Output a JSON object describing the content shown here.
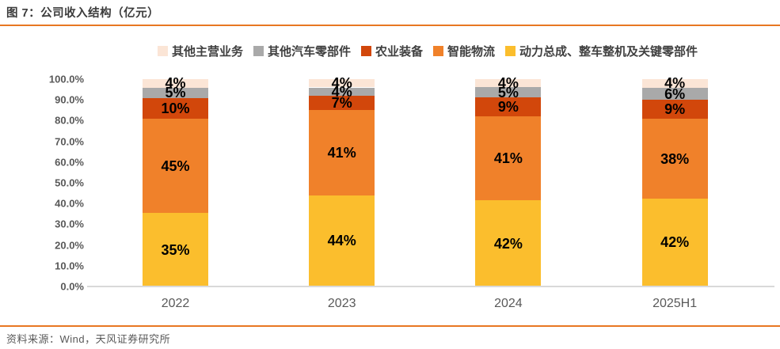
{
  "figure": {
    "title": "图 7：公司收入结构（亿元）",
    "source": "资料来源：Wind，天风证券研究所"
  },
  "colors": {
    "accent_rule": "#e87722",
    "axis_line": "#d9d9d9",
    "title_text": "#3b3b3b",
    "tick_text": "#595959",
    "segment_label_text": "#000000"
  },
  "legend": {
    "items": [
      {
        "label": "其他主营业务",
        "color": "#fbe5d6"
      },
      {
        "label": "其他汽车零部件",
        "color": "#a9a9a9"
      },
      {
        "label": "农业装备",
        "color": "#d2470b"
      },
      {
        "label": "智能物流",
        "color": "#f0812a"
      },
      {
        "label": "动力总成、整车整机及关键零部件",
        "color": "#fbbe2d"
      }
    ]
  },
  "chart_data": {
    "type": "bar",
    "stacked": true,
    "title": "图 7：公司收入结构（亿元）",
    "categories": [
      "2022",
      "2023",
      "2024",
      "2025H1"
    ],
    "series": [
      {
        "name": "动力总成、整车整机及关键零部件",
        "color": "#fbbe2d",
        "values": [
          35,
          44,
          42,
          42
        ]
      },
      {
        "name": "智能物流",
        "color": "#f0812a",
        "values": [
          45,
          41,
          41,
          38
        ]
      },
      {
        "name": "农业装备",
        "color": "#d2470b",
        "values": [
          10,
          7,
          9,
          9
        ]
      },
      {
        "name": "其他汽车零部件",
        "color": "#a9a9a9",
        "values": [
          5,
          4,
          5,
          6
        ]
      },
      {
        "name": "其他主营业务",
        "color": "#fbe5d6",
        "values": [
          4,
          4,
          4,
          4
        ]
      }
    ],
    "value_suffix": "%",
    "xlabel": "",
    "ylabel": "",
    "ylim": [
      0,
      100
    ],
    "yticks": [
      "0.0%",
      "10.0%",
      "20.0%",
      "30.0%",
      "40.0%",
      "50.0%",
      "60.0%",
      "70.0%",
      "80.0%",
      "90.0%",
      "100.0%"
    ],
    "grid": false,
    "legend_position": "top"
  }
}
